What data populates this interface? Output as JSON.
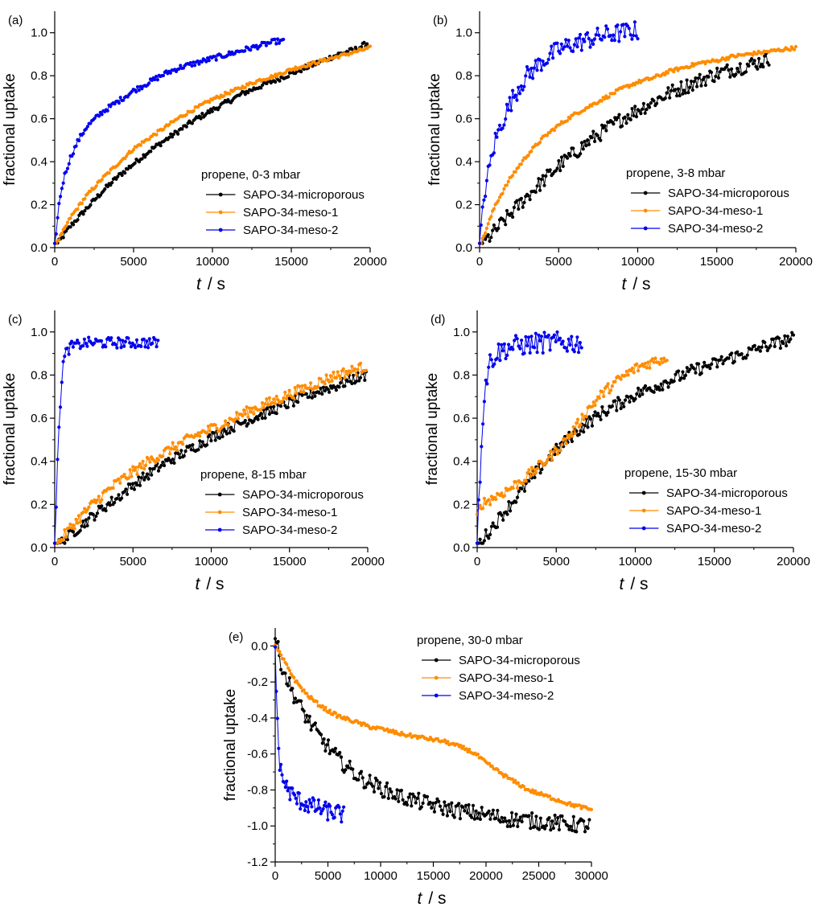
{
  "figure": {
    "description_free": true
  },
  "colors": {
    "microporous": "#000000",
    "meso1": "#ff8c00",
    "meso2": "#0000ee"
  },
  "chart_data": [
    {
      "panel": "(a)",
      "type": "line",
      "legend_title": "propene, 0-3 mbar",
      "xlabel_italic": "t",
      "xlabel_unit": "/  s",
      "ylabel": "fractional uptake",
      "xlim": [
        0,
        20000
      ],
      "ylim": [
        0,
        1.1
      ],
      "xticks": [
        0,
        5000,
        10000,
        15000,
        20000
      ],
      "xtick_labels": [
        "0",
        "5000",
        "10000",
        "15000",
        "20000"
      ],
      "yticks": [
        0,
        0.2,
        0.4,
        0.6,
        0.8,
        1.0
      ],
      "ytick_labels": [
        "0.0",
        "0.2",
        "0.4",
        "0.6",
        "0.8",
        "1.0"
      ],
      "series": [
        {
          "name": "SAPO-34-microporous",
          "color": "#000000",
          "x": [
            0,
            1000,
            2000,
            3000,
            4000,
            5000,
            6000,
            7000,
            8000,
            9000,
            10000,
            11000,
            12000,
            13000,
            14000,
            15000,
            16000,
            17000,
            18000,
            19000,
            19800
          ],
          "values": [
            0.0,
            0.1,
            0.18,
            0.26,
            0.33,
            0.39,
            0.45,
            0.5,
            0.55,
            0.6,
            0.64,
            0.68,
            0.72,
            0.75,
            0.78,
            0.81,
            0.84,
            0.87,
            0.9,
            0.92,
            0.95
          ],
          "noise": 0.012
        },
        {
          "name": "SAPO-34-meso-1",
          "color": "#ff8c00",
          "x": [
            0,
            1000,
            2000,
            3000,
            4000,
            5000,
            6000,
            7000,
            8000,
            9000,
            10000,
            11000,
            12000,
            13000,
            14000,
            15000,
            16000,
            17000,
            18000,
            19000,
            20000
          ],
          "values": [
            0.0,
            0.14,
            0.24,
            0.32,
            0.39,
            0.46,
            0.51,
            0.56,
            0.61,
            0.65,
            0.69,
            0.72,
            0.75,
            0.78,
            0.8,
            0.83,
            0.85,
            0.87,
            0.89,
            0.91,
            0.93
          ],
          "noise": 0.008
        },
        {
          "name": "SAPO-34-meso-2",
          "color": "#0000ee",
          "x": [
            0,
            100,
            300,
            600,
            1000,
            1500,
            2000,
            3000,
            4000,
            5000,
            6000,
            7000,
            8000,
            9000,
            10000,
            11000,
            12000,
            13000,
            14000,
            14500
          ],
          "values": [
            0.0,
            0.08,
            0.22,
            0.33,
            0.42,
            0.5,
            0.56,
            0.63,
            0.68,
            0.73,
            0.77,
            0.81,
            0.84,
            0.86,
            0.88,
            0.9,
            0.92,
            0.94,
            0.96,
            0.96
          ],
          "noise": 0.012
        }
      ]
    },
    {
      "panel": "(b)",
      "type": "line",
      "legend_title": "propene, 3-8 mbar",
      "xlabel_italic": "t",
      "xlabel_unit": "/  s",
      "ylabel": "fractional uptake",
      "xlim": [
        0,
        20000
      ],
      "ylim": [
        0,
        1.1
      ],
      "xticks": [
        0,
        5000,
        10000,
        15000,
        20000
      ],
      "xtick_labels": [
        "0",
        "5000",
        "10000",
        "15000",
        "20000"
      ],
      "yticks": [
        0,
        0.2,
        0.4,
        0.6,
        0.8,
        1.0
      ],
      "ytick_labels": [
        "0.0",
        "0.2",
        "0.4",
        "0.6",
        "0.8",
        "1.0"
      ],
      "series": [
        {
          "name": "SAPO-34-microporous",
          "color": "#000000",
          "x": [
            0,
            1000,
            2000,
            3000,
            4000,
            5000,
            6000,
            7000,
            8000,
            9000,
            10000,
            11000,
            12000,
            13000,
            14000,
            15000,
            16000,
            17000,
            18000,
            18300
          ],
          "values": [
            0.0,
            0.08,
            0.16,
            0.24,
            0.31,
            0.38,
            0.44,
            0.5,
            0.55,
            0.6,
            0.64,
            0.68,
            0.72,
            0.75,
            0.78,
            0.81,
            0.83,
            0.85,
            0.87,
            0.88
          ],
          "noise": 0.035
        },
        {
          "name": "SAPO-34-meso-1",
          "color": "#ff8c00",
          "x": [
            0,
            1000,
            2000,
            3000,
            4000,
            5000,
            6000,
            7000,
            8000,
            9000,
            10000,
            11000,
            12000,
            13000,
            14000,
            15000,
            16000,
            17000,
            18000,
            19000,
            20000
          ],
          "values": [
            0.0,
            0.2,
            0.33,
            0.43,
            0.51,
            0.57,
            0.62,
            0.66,
            0.7,
            0.74,
            0.77,
            0.79,
            0.82,
            0.84,
            0.86,
            0.87,
            0.89,
            0.9,
            0.91,
            0.92,
            0.93
          ],
          "noise": 0.008
        },
        {
          "name": "SAPO-34-meso-2",
          "color": "#0000ee",
          "x": [
            0,
            300,
            700,
            1000,
            1500,
            2000,
            2500,
            3000,
            4000,
            5000,
            6000,
            7000,
            8000,
            9000,
            10000
          ],
          "values": [
            0.0,
            0.25,
            0.4,
            0.5,
            0.6,
            0.68,
            0.75,
            0.8,
            0.87,
            0.92,
            0.95,
            0.97,
            0.99,
            1.0,
            1.01
          ],
          "noise": 0.045
        }
      ]
    },
    {
      "panel": "(c)",
      "type": "line",
      "legend_title": "propene, 8-15 mbar",
      "xlabel_italic": "t",
      "xlabel_unit": "/  s",
      "ylabel": "fractional uptake",
      "xlim": [
        0,
        20000
      ],
      "ylim": [
        0,
        1.1
      ],
      "xticks": [
        0,
        5000,
        10000,
        15000,
        20000
      ],
      "xtick_labels": [
        "0",
        "5000",
        "10000",
        "15000",
        "20000"
      ],
      "yticks": [
        0,
        0.2,
        0.4,
        0.6,
        0.8,
        1.0
      ],
      "ytick_labels": [
        "0.0",
        "0.2",
        "0.4",
        "0.6",
        "0.8",
        "1.0"
      ],
      "series": [
        {
          "name": "SAPO-34-microporous",
          "color": "#000000",
          "x": [
            0,
            1000,
            2000,
            3000,
            4000,
            5000,
            6000,
            7000,
            8000,
            9000,
            10000,
            11000,
            12000,
            13000,
            14000,
            15000,
            16000,
            17000,
            18000,
            19000,
            19900
          ],
          "values": [
            0.0,
            0.06,
            0.12,
            0.18,
            0.23,
            0.29,
            0.34,
            0.39,
            0.43,
            0.47,
            0.51,
            0.55,
            0.58,
            0.61,
            0.64,
            0.67,
            0.7,
            0.73,
            0.75,
            0.78,
            0.8
          ],
          "noise": 0.025
        },
        {
          "name": "SAPO-34-meso-1",
          "color": "#ff8c00",
          "x": [
            0,
            1000,
            2000,
            3000,
            4000,
            5000,
            6000,
            7000,
            8000,
            9000,
            10000,
            11000,
            12000,
            13000,
            14000,
            15000,
            16000,
            17000,
            18000,
            19000,
            19900
          ],
          "values": [
            0.0,
            0.09,
            0.17,
            0.24,
            0.3,
            0.35,
            0.4,
            0.44,
            0.48,
            0.52,
            0.55,
            0.58,
            0.62,
            0.65,
            0.68,
            0.71,
            0.74,
            0.77,
            0.8,
            0.82,
            0.84
          ],
          "noise": 0.025
        },
        {
          "name": "SAPO-34-meso-2",
          "color": "#0000ee",
          "x": [
            0,
            150,
            300,
            500,
            700,
            1000,
            1500,
            2000,
            3000,
            4000,
            5000,
            6000,
            6600
          ],
          "values": [
            0.0,
            0.33,
            0.6,
            0.84,
            0.9,
            0.93,
            0.94,
            0.95,
            0.95,
            0.95,
            0.95,
            0.95,
            0.95
          ],
          "noise": 0.025
        }
      ]
    },
    {
      "panel": "(d)",
      "type": "line",
      "legend_title": "propene, 15-30 mbar",
      "xlabel_italic": "t",
      "xlabel_unit": "/  s",
      "ylabel": "fractional uptake",
      "xlim": [
        0,
        20000
      ],
      "ylim": [
        0,
        1.1
      ],
      "xticks": [
        0,
        5000,
        10000,
        15000,
        20000
      ],
      "xtick_labels": [
        "0",
        "5000",
        "10000",
        "15000",
        "20000"
      ],
      "yticks": [
        0,
        0.2,
        0.4,
        0.6,
        0.8,
        1.0
      ],
      "ytick_labels": [
        "0.0",
        "0.2",
        "0.4",
        "0.6",
        "0.8",
        "1.0"
      ],
      "series": [
        {
          "name": "SAPO-34-microporous",
          "color": "#000000",
          "x": [
            0,
            1000,
            2000,
            3000,
            4000,
            5000,
            6000,
            7000,
            8000,
            9000,
            10000,
            11000,
            12000,
            13000,
            14000,
            15000,
            16000,
            17000,
            18000,
            19000,
            20000
          ],
          "values": [
            0.0,
            0.1,
            0.19,
            0.28,
            0.37,
            0.45,
            0.52,
            0.58,
            0.63,
            0.67,
            0.71,
            0.74,
            0.77,
            0.8,
            0.83,
            0.85,
            0.88,
            0.9,
            0.93,
            0.95,
            0.97
          ],
          "noise": 0.03
        },
        {
          "name": "SAPO-34-meso-1",
          "color": "#ff8c00",
          "x": [
            0,
            200,
            1000,
            2000,
            3000,
            4000,
            5000,
            6000,
            7000,
            8000,
            9000,
            10000,
            11000,
            12000
          ],
          "values": [
            0.14,
            0.2,
            0.23,
            0.27,
            0.32,
            0.38,
            0.45,
            0.53,
            0.64,
            0.72,
            0.78,
            0.83,
            0.86,
            0.88
          ],
          "noise": 0.025
        },
        {
          "name": "SAPO-34-meso-2",
          "color": "#0000ee",
          "x": [
            0,
            100,
            300,
            500,
            800,
            1200,
            2000,
            3000,
            4000,
            5000,
            6000,
            6600
          ],
          "values": [
            0.0,
            0.2,
            0.55,
            0.75,
            0.86,
            0.9,
            0.93,
            0.94,
            0.95,
            0.95,
            0.95,
            0.95
          ],
          "noise": 0.05
        }
      ]
    },
    {
      "panel": "(e)",
      "type": "line",
      "legend_title": "propene, 30-0 mbar",
      "xlabel_italic": "t",
      "xlabel_unit": "/  s",
      "ylabel": "fractional uptake",
      "xlim": [
        0,
        30000
      ],
      "ylim": [
        -1.2,
        0.1
      ],
      "xticks": [
        0,
        5000,
        10000,
        15000,
        20000,
        25000,
        30000
      ],
      "xtick_labels": [
        "0",
        "5000",
        "10000",
        "15000",
        "20000",
        "25000",
        "30000"
      ],
      "yticks": [
        0.0,
        -0.2,
        -0.4,
        -0.6,
        -0.8,
        -1.0,
        -1.2
      ],
      "ytick_labels": [
        "0.0",
        "-0.2",
        "-0.4",
        "-0.6",
        "-0.8",
        "-1.0",
        "-1.2"
      ],
      "series": [
        {
          "name": "SAPO-34-microporous",
          "color": "#000000",
          "x": [
            0,
            500,
            1000,
            2000,
            3000,
            4000,
            5000,
            6000,
            7000,
            8000,
            10000,
            12000,
            14000,
            16000,
            18000,
            20000,
            22000,
            24000,
            26000,
            28000,
            29800
          ],
          "values": [
            0.05,
            -0.08,
            -0.17,
            -0.3,
            -0.4,
            -0.49,
            -0.56,
            -0.63,
            -0.68,
            -0.73,
            -0.79,
            -0.84,
            -0.87,
            -0.9,
            -0.92,
            -0.94,
            -0.96,
            -0.97,
            -0.98,
            -0.99,
            -1.0
          ],
          "noise": 0.045
        },
        {
          "name": "SAPO-34-meso-1",
          "color": "#ff8c00",
          "x": [
            0,
            1000,
            2000,
            3000,
            4000,
            5000,
            6000,
            7000,
            8000,
            9000,
            10000,
            12000,
            14000,
            16000,
            17000,
            18000,
            19000,
            20000,
            22000,
            24000,
            26000,
            28000,
            30000
          ],
          "values": [
            0.0,
            -0.1,
            -0.2,
            -0.27,
            -0.32,
            -0.36,
            -0.39,
            -0.41,
            -0.43,
            -0.45,
            -0.46,
            -0.49,
            -0.51,
            -0.53,
            -0.55,
            -0.57,
            -0.6,
            -0.65,
            -0.73,
            -0.8,
            -0.84,
            -0.88,
            -0.91
          ],
          "noise": 0.01
        },
        {
          "name": "SAPO-34-meso-2",
          "color": "#0000ee",
          "x": [
            0,
            100,
            200,
            300,
            500,
            800,
            1200,
            2000,
            3000,
            4000,
            5000,
            6000,
            6500
          ],
          "values": [
            0.0,
            -0.2,
            -0.42,
            -0.57,
            -0.68,
            -0.75,
            -0.8,
            -0.85,
            -0.88,
            -0.9,
            -0.92,
            -0.93,
            -0.94
          ],
          "noise": 0.05
        }
      ]
    }
  ]
}
